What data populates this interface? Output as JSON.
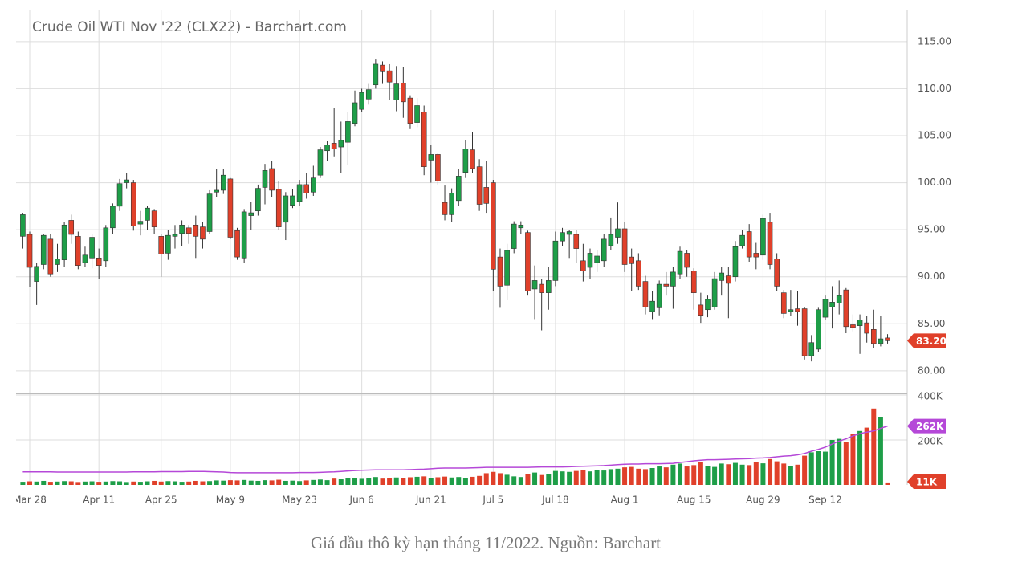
{
  "chart_data": {
    "type": "candlestick",
    "title": "Crude Oil WTI Nov '22 (CLX22) - Barchart.com",
    "caption": "Giá dầu thô kỳ hạn tháng 11/2022. Nguồn: Barchart",
    "categories": [
      null,
      "Mar 28",
      null,
      null,
      null,
      null,
      null,
      null,
      null,
      null,
      null,
      "Apr 11",
      null,
      null,
      null,
      null,
      null,
      null,
      null,
      null,
      "Apr 25",
      null,
      null,
      null,
      null,
      null,
      null,
      null,
      null,
      null,
      "May 9",
      null,
      null,
      null,
      null,
      null,
      null,
      null,
      null,
      null,
      "May 23",
      null,
      null,
      null,
      null,
      null,
      null,
      null,
      null,
      "Jun 6",
      null,
      null,
      null,
      null,
      null,
      null,
      null,
      null,
      null,
      "Jun 21",
      null,
      null,
      null,
      null,
      null,
      null,
      null,
      null,
      "Jul 5",
      null,
      null,
      null,
      null,
      null,
      null,
      null,
      null,
      "Jul 18",
      null,
      null,
      null,
      null,
      null,
      null,
      null,
      null,
      null,
      "Aug 1",
      null,
      null,
      null,
      null,
      null,
      null,
      null,
      null,
      null,
      "Aug 15",
      null,
      null,
      null,
      null,
      null,
      null,
      null,
      null,
      null,
      "Aug 29",
      null,
      null,
      null,
      null,
      null,
      null,
      null,
      null,
      "Sep 12",
      null,
      null,
      null,
      null,
      null,
      null,
      null,
      null,
      null
    ],
    "open": [
      94.3,
      94.5,
      89.5,
      91.3,
      94.0,
      91.3,
      91.8,
      96.0,
      94.3,
      91.5,
      92.0,
      92.0,
      91.7,
      95.2,
      97.5,
      100.0,
      100.0,
      95.6,
      96.0,
      97.0,
      94.3,
      92.5,
      94.3,
      94.6,
      95.2,
      95.5,
      95.3,
      94.8,
      99.0,
      99.2,
      100.4,
      94.9,
      92.0,
      96.5,
      97.0,
      99.5,
      101.5,
      99.3,
      95.8,
      97.6,
      98.0,
      99.8,
      99.0,
      100.8,
      103.4,
      104.2,
      103.8,
      104.3,
      106.3,
      107.8,
      108.9,
      110.4,
      112.5,
      111.9,
      108.8,
      110.6,
      109.0,
      106.4,
      107.5,
      102.4,
      103.0,
      97.9,
      96.6,
      98.1,
      101.1,
      103.5,
      101.7,
      99.5,
      100.0,
      92.1,
      89.1,
      93.0,
      95.2,
      94.7,
      88.7,
      89.2,
      88.3,
      89.6,
      93.8,
      94.5,
      94.5,
      91.7,
      91.0,
      91.5,
      91.7,
      93.3,
      94.2,
      95.1,
      92.1,
      91.7,
      89.5,
      86.3,
      86.7,
      89.2,
      89.0,
      90.3,
      92.5,
      90.6,
      87.0,
      86.5,
      86.8,
      89.6,
      90.1,
      90.0,
      93.3,
      94.8,
      92.5,
      92.3,
      95.8,
      91.9,
      88.3,
      86.3,
      86.6,
      86.6,
      81.6,
      82.3,
      85.7,
      86.8,
      87.2,
      88.6,
      84.9,
      84.8,
      85.1,
      84.4,
      82.9,
      83.5
    ],
    "high": [
      96.8,
      94.8,
      91.5,
      94.5,
      94.5,
      93.5,
      95.8,
      96.6,
      94.8,
      93.2,
      94.5,
      93.0,
      95.5,
      97.8,
      100.4,
      101.0,
      100.3,
      97.0,
      97.5,
      97.2,
      94.5,
      95.0,
      95.5,
      96.0,
      95.5,
      96.5,
      95.8,
      99.2,
      101.5,
      101.5,
      100.5,
      95.2,
      97.2,
      98.0,
      99.8,
      102.0,
      102.3,
      100.2,
      99.0,
      99.3,
      100.3,
      101.0,
      101.8,
      103.8,
      104.4,
      107.9,
      106.5,
      107.5,
      109.8,
      110.0,
      110.5,
      113.1,
      112.9,
      112.6,
      112.4,
      112.3,
      109.3,
      109.0,
      108.2,
      104.0,
      103.2,
      99.7,
      99.4,
      101.5,
      104.5,
      105.4,
      102.5,
      102.3,
      100.3,
      93.0,
      93.5,
      95.9,
      95.9,
      94.9,
      91.2,
      89.8,
      91.0,
      94.8,
      95.2,
      95.0,
      95.0,
      93.5,
      93.0,
      92.8,
      94.5,
      96.3,
      97.9,
      95.8,
      93.0,
      92.5,
      90.1,
      88.5,
      89.6,
      90.5,
      91.0,
      93.2,
      92.8,
      90.9,
      88.3,
      88.0,
      90.5,
      91.0,
      91.0,
      93.8,
      95.0,
      95.6,
      93.6,
      96.6,
      96.8,
      92.5,
      88.6,
      88.6,
      88.5,
      86.8,
      83.8,
      86.7,
      88.0,
      89.0,
      89.6,
      88.8,
      86.0,
      86.0,
      85.8,
      86.5,
      85.8,
      83.9
    ],
    "low": [
      93.0,
      88.9,
      87.0,
      90.8,
      90.0,
      90.5,
      91.0,
      93.5,
      90.8,
      91.0,
      90.9,
      89.8,
      91.0,
      94.5,
      97.0,
      99.4,
      94.9,
      94.4,
      95.0,
      94.5,
      90.0,
      91.8,
      93.0,
      93.3,
      93.5,
      92.0,
      93.0,
      94.5,
      98.5,
      98.8,
      94.0,
      91.8,
      91.5,
      95.0,
      96.5,
      97.7,
      98.5,
      95.0,
      93.9,
      97.3,
      97.5,
      98.3,
      98.6,
      100.5,
      102.3,
      102.8,
      101.0,
      101.9,
      106.0,
      107.5,
      108.3,
      110.0,
      110.5,
      108.8,
      107.6,
      106.9,
      105.7,
      105.9,
      100.8,
      100.0,
      99.8,
      96.0,
      95.8,
      97.5,
      100.5,
      101.0,
      97.0,
      96.8,
      88.5,
      86.7,
      87.5,
      92.5,
      94.5,
      88.0,
      85.5,
      84.3,
      86.5,
      89.0,
      93.3,
      92.0,
      91.5,
      89.5,
      89.8,
      90.5,
      91.0,
      92.8,
      93.5,
      90.5,
      88.5,
      88.6,
      86.0,
      85.5,
      85.9,
      88.0,
      86.6,
      89.8,
      90.0,
      86.5,
      85.1,
      85.7,
      86.5,
      88.0,
      85.6,
      89.5,
      93.0,
      91.6,
      90.8,
      91.8,
      90.8,
      88.5,
      85.6,
      85.8,
      84.8,
      81.2,
      81.0,
      82.0,
      85.4,
      84.5,
      86.0,
      84.0,
      84.2,
      81.8,
      83.0,
      82.4,
      82.6,
      82.9
    ],
    "close": [
      96.6,
      91.0,
      91.1,
      94.4,
      90.3,
      91.9,
      95.5,
      94.5,
      91.2,
      92.3,
      94.2,
      91.2,
      95.2,
      97.5,
      99.9,
      100.3,
      95.4,
      95.9,
      97.3,
      95.3,
      92.4,
      94.4,
      94.5,
      95.5,
      94.6,
      94.3,
      94.0,
      98.8,
      99.2,
      100.8,
      94.2,
      92.1,
      96.9,
      96.8,
      99.4,
      101.3,
      99.2,
      95.3,
      98.6,
      98.6,
      99.8,
      98.9,
      100.5,
      103.5,
      104.0,
      103.6,
      104.5,
      106.5,
      108.5,
      109.6,
      109.9,
      112.6,
      111.8,
      110.7,
      110.5,
      108.6,
      106.3,
      108.2,
      101.7,
      103.0,
      100.2,
      96.6,
      98.9,
      100.7,
      103.6,
      101.5,
      97.7,
      97.8,
      90.8,
      89.0,
      92.8,
      95.6,
      95.5,
      88.5,
      89.6,
      88.3,
      89.6,
      93.8,
      94.7,
      94.8,
      93.0,
      90.6,
      92.5,
      92.2,
      94.0,
      94.5,
      95.1,
      91.3,
      91.4,
      89.0,
      86.8,
      87.4,
      89.2,
      89.0,
      90.5,
      92.7,
      91.0,
      88.3,
      85.9,
      87.6,
      89.8,
      90.4,
      89.3,
      93.2,
      94.4,
      92.1,
      92.1,
      96.2,
      91.3,
      89.0,
      86.1,
      86.5,
      86.3,
      81.6,
      83.0,
      86.5,
      87.6,
      87.3,
      88.0,
      84.7,
      84.6,
      85.4,
      84.0,
      82.9,
      83.4,
      83.2
    ],
    "last_close_label": "83.20",
    "volume": [
      14000,
      16000,
      15000,
      18000,
      14000,
      15000,
      17000,
      16000,
      13000,
      15000,
      16000,
      14000,
      15000,
      17000,
      16000,
      13000,
      15000,
      14000,
      16000,
      18000,
      15000,
      17000,
      16000,
      14000,
      15000,
      18000,
      16000,
      17000,
      20000,
      19000,
      21000,
      20000,
      22000,
      19000,
      18000,
      21000,
      20000,
      23000,
      18000,
      19000,
      17000,
      20000,
      22000,
      24000,
      21000,
      28000,
      25000,
      30000,
      32000,
      27000,
      31000,
      35000,
      28000,
      30000,
      33000,
      29000,
      34000,
      36000,
      38000,
      32000,
      34000,
      37000,
      33000,
      35000,
      30000,
      36000,
      40000,
      52000,
      58000,
      52000,
      45000,
      38000,
      35000,
      48000,
      55000,
      44000,
      50000,
      62000,
      60000,
      58000,
      62000,
      66000,
      60000,
      65000,
      64000,
      70000,
      72000,
      78000,
      80000,
      72000,
      70000,
      75000,
      82000,
      78000,
      90000,
      95000,
      82000,
      88000,
      100000,
      85000,
      80000,
      95000,
      92000,
      98000,
      90000,
      88000,
      100000,
      96000,
      115000,
      105000,
      95000,
      85000,
      90000,
      130000,
      145000,
      150000,
      148000,
      200000,
      205000,
      190000,
      225000,
      240000,
      255000,
      340000,
      300000,
      11000
    ],
    "last_volume_label": "11K",
    "volume_avg": [
      58000,
      58000,
      58000,
      58000,
      58000,
      57000,
      57000,
      57000,
      57000,
      57000,
      57000,
      57000,
      57000,
      57000,
      57000,
      57000,
      58000,
      58000,
      58000,
      58000,
      59000,
      59000,
      59000,
      59000,
      60000,
      60000,
      60000,
      59000,
      58000,
      57000,
      55000,
      54000,
      54000,
      54000,
      54000,
      54000,
      54000,
      54000,
      54000,
      54000,
      55000,
      55000,
      55000,
      56000,
      57000,
      58000,
      60000,
      62000,
      64000,
      65000,
      66000,
      67000,
      67000,
      67000,
      67000,
      67000,
      68000,
      69000,
      70000,
      72000,
      74000,
      75000,
      75000,
      75000,
      75000,
      76000,
      77000,
      78000,
      78000,
      78000,
      78000,
      78000,
      78000,
      78000,
      79000,
      80000,
      80000,
      80000,
      80000,
      81000,
      82000,
      83000,
      84000,
      85000,
      86000,
      88000,
      90000,
      92000,
      93000,
      93000,
      94000,
      94000,
      94000,
      95000,
      96000,
      100000,
      103000,
      107000,
      110000,
      112000,
      112000,
      113000,
      114000,
      115000,
      116000,
      117000,
      119000,
      120000,
      122000,
      125000,
      128000,
      130000,
      134000,
      140000,
      150000,
      158000,
      168000,
      182000,
      195000,
      205000,
      218000,
      228000,
      235000,
      240000,
      252000,
      262000
    ],
    "last_volume_avg_label": "262K",
    "up_color": "#1e9e48",
    "down_color": "#e0402a",
    "avg_color": "#b548d8",
    "ylim": [
      77.6,
      118.4
    ],
    "yticks": [
      {
        "value": 80,
        "label": "80.00"
      },
      {
        "value": 85,
        "label": "85.00"
      },
      {
        "value": 90,
        "label": "90.00"
      },
      {
        "value": 95,
        "label": "95.00"
      },
      {
        "value": 100,
        "label": "100.00"
      },
      {
        "value": 105,
        "label": "105.00"
      },
      {
        "value": 110,
        "label": "110.00"
      },
      {
        "value": 115,
        "label": "115.00"
      }
    ],
    "y2lim": [
      0,
      400000
    ],
    "y2ticks": [
      {
        "value": 200000,
        "label": "200K"
      },
      {
        "value": 400000,
        "label": "400K"
      }
    ],
    "grid": true
  }
}
